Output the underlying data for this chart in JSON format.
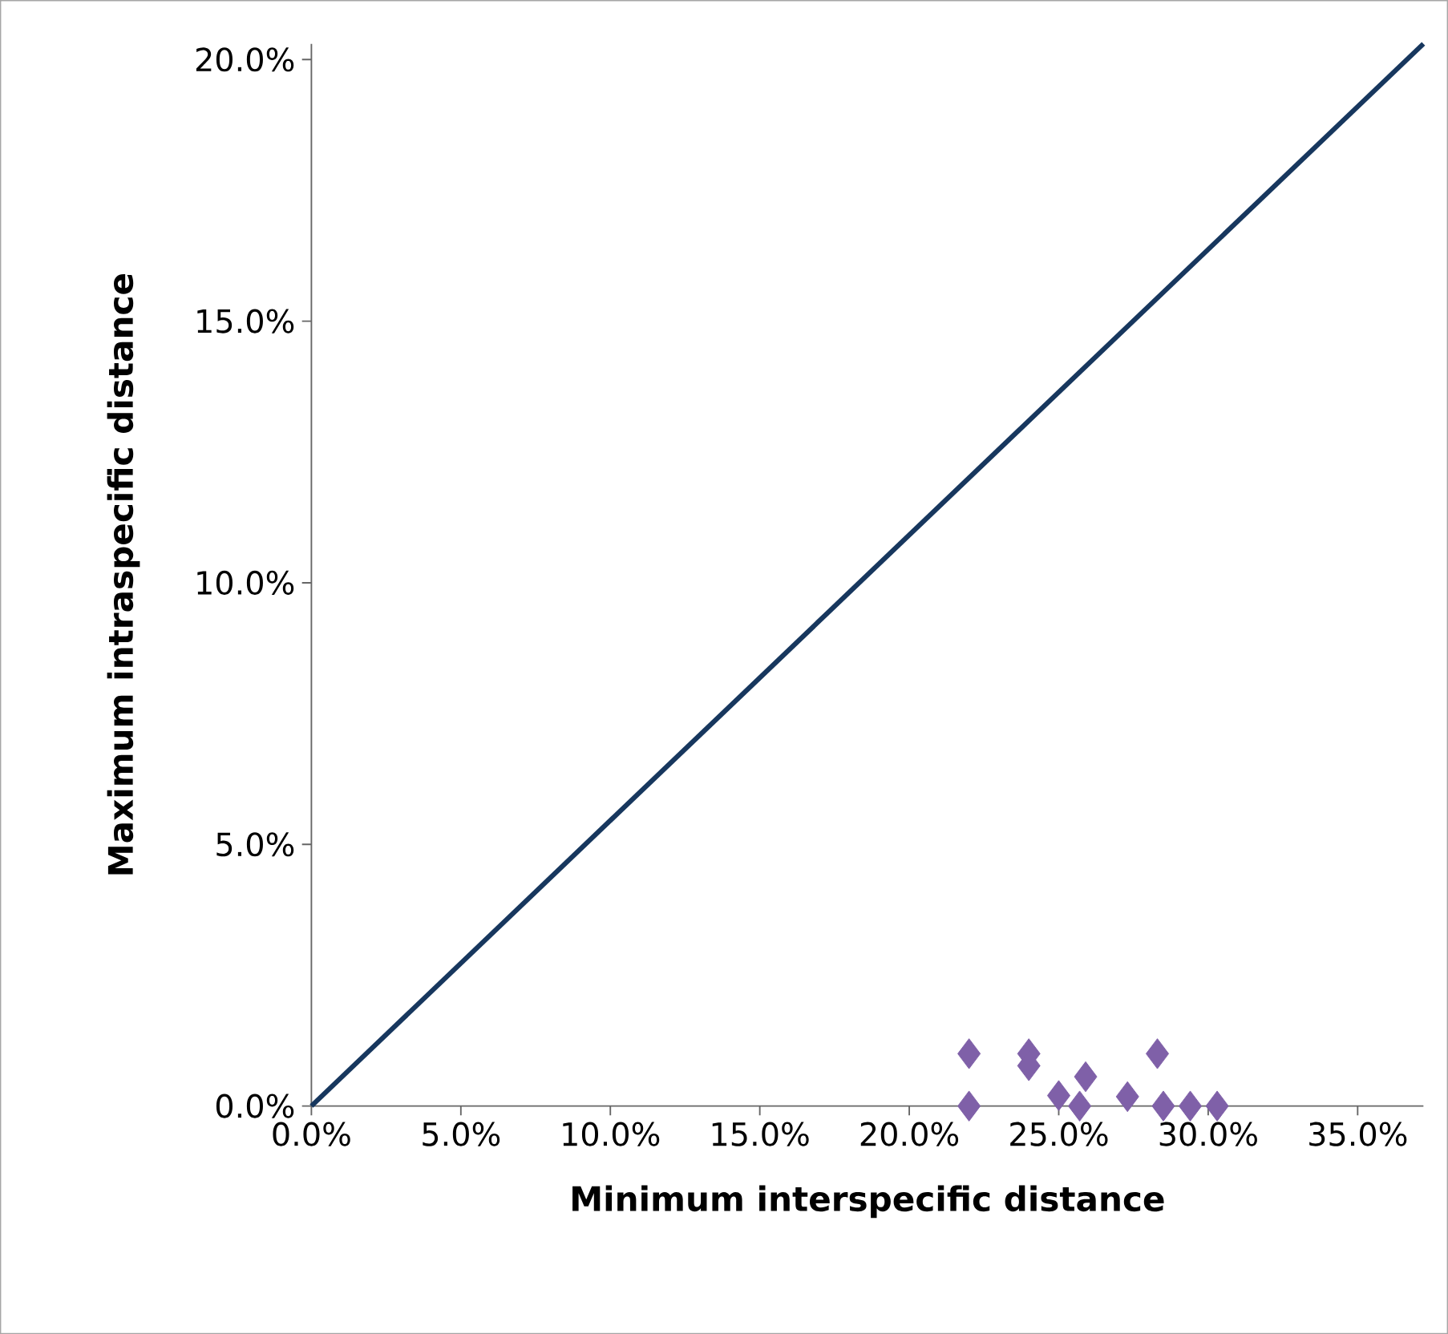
{
  "chart_data": {
    "type": "scatter",
    "xlabel": "Minimum interspecific distance",
    "ylabel": "Maximum intraspecific distance",
    "xlim": [
      0,
      37.2
    ],
    "ylim": [
      0,
      20.3
    ],
    "xticks": [
      {
        "value": 0,
        "label": "0.0%"
      },
      {
        "value": 5,
        "label": "5.0%"
      },
      {
        "value": 10,
        "label": "10.0%"
      },
      {
        "value": 15,
        "label": "15.0%"
      },
      {
        "value": 20,
        "label": "20.0%"
      },
      {
        "value": 25,
        "label": "25.0%"
      },
      {
        "value": 30,
        "label": "30.0%"
      },
      {
        "value": 35,
        "label": "35.0%"
      }
    ],
    "yticks": [
      {
        "value": 0,
        "label": "0.0%"
      },
      {
        "value": 5,
        "label": "5.0%"
      },
      {
        "value": 10,
        "label": "10.0%"
      },
      {
        "value": 15,
        "label": "15.0%"
      },
      {
        "value": 20,
        "label": "20.0%"
      }
    ],
    "series": [
      {
        "type": "line",
        "color": "#17375e",
        "marker": "none",
        "line_style": "solid",
        "x": [
          0,
          37.2
        ],
        "values": [
          0,
          20.3
        ]
      },
      {
        "type": "scatter",
        "color": "#7f60a8",
        "marker": "diamond",
        "x": [
          22.0,
          22.0,
          24.0,
          24.0,
          25.0,
          25.7,
          25.9,
          27.3,
          28.3,
          28.5,
          29.4,
          30.3
        ],
        "values": [
          1.0,
          0,
          1.0,
          0.77,
          0.2,
          0,
          0.56,
          0.18,
          1.0,
          0,
          0,
          0
        ]
      }
    ]
  }
}
